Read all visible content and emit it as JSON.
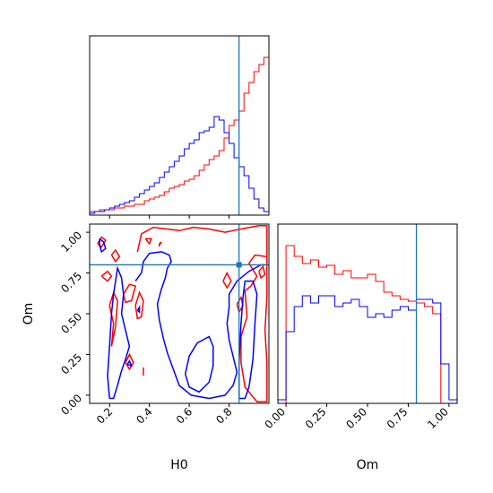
{
  "chart_data": [
    {
      "type": "area",
      "panel": "H0 marginal",
      "xlim": [
        0.1,
        1.0
      ],
      "x_bin_edges": [
        0.1,
        0.125,
        0.15,
        0.175,
        0.2,
        0.225,
        0.25,
        0.275,
        0.3,
        0.325,
        0.35,
        0.375,
        0.4,
        0.425,
        0.45,
        0.475,
        0.5,
        0.525,
        0.55,
        0.575,
        0.6,
        0.625,
        0.65,
        0.675,
        0.7,
        0.725,
        0.75,
        0.775,
        0.8,
        0.825,
        0.85,
        0.875,
        0.9,
        0.925,
        0.95,
        0.975,
        1.0
      ],
      "series": [
        {
          "color": "#ff0000",
          "values": [
            0.02,
            0.02,
            0.03,
            0.03,
            0.03,
            0.04,
            0.04,
            0.05,
            0.05,
            0.06,
            0.06,
            0.08,
            0.09,
            0.1,
            0.11,
            0.13,
            0.15,
            0.16,
            0.17,
            0.19,
            0.2,
            0.22,
            0.25,
            0.28,
            0.31,
            0.33,
            0.36,
            0.43,
            0.5,
            0.53,
            0.58,
            0.68,
            0.74,
            0.8,
            0.84,
            0.88
          ]
        },
        {
          "color": "#0000ff",
          "values": [
            0.01,
            0.02,
            0.02,
            0.03,
            0.04,
            0.05,
            0.06,
            0.07,
            0.08,
            0.1,
            0.12,
            0.14,
            0.16,
            0.18,
            0.21,
            0.24,
            0.27,
            0.3,
            0.33,
            0.37,
            0.4,
            0.42,
            0.46,
            0.47,
            0.49,
            0.55,
            0.53,
            0.46,
            0.4,
            0.32,
            0.27,
            0.22,
            0.15,
            0.09,
            0.04,
            0.02
          ]
        }
      ],
      "truth": 0.85
    },
    {
      "type": "area",
      "panel": "Om marginal",
      "xlim": [
        -0.05,
        1.05
      ],
      "xticks": [
        "0.00",
        "0.25",
        "0.50",
        "0.75",
        "1.00"
      ],
      "xtick_values": [
        0,
        0.25,
        0.5,
        0.75,
        1.0
      ],
      "xlabel": "Om",
      "x_bin_edges": [
        -0.05,
        0.0,
        0.05,
        0.1,
        0.15,
        0.2,
        0.25,
        0.3,
        0.35,
        0.4,
        0.45,
        0.5,
        0.55,
        0.6,
        0.65,
        0.7,
        0.75,
        0.8,
        0.85,
        0.9,
        0.95,
        1.0,
        1.05
      ],
      "series": [
        {
          "color": "#ff0000",
          "values": [
            0.0,
            0.88,
            0.82,
            0.78,
            0.8,
            0.76,
            0.77,
            0.72,
            0.74,
            0.7,
            0.7,
            0.72,
            0.68,
            0.62,
            0.6,
            0.58,
            0.57,
            0.56,
            0.54,
            0.5,
            0.0,
            0.0
          ]
        },
        {
          "color": "#0000ff",
          "values": [
            0.02,
            0.4,
            0.54,
            0.6,
            0.56,
            0.6,
            0.6,
            0.54,
            0.56,
            0.58,
            0.54,
            0.48,
            0.5,
            0.48,
            0.52,
            0.54,
            0.52,
            0.58,
            0.58,
            0.56,
            0.22,
            0.02
          ]
        }
      ],
      "truth": 0.8
    },
    {
      "type": "scatter",
      "panel": "H0 vs Om contours",
      "xlim": [
        0.1,
        1.0
      ],
      "ylim": [
        -0.05,
        1.05
      ],
      "xticks": [
        "0.2",
        "0.4",
        "0.6",
        "0.8"
      ],
      "xtick_values": [
        0.2,
        0.4,
        0.6,
        0.8
      ],
      "yticks": [
        "0.00",
        "0.25",
        "0.50",
        "0.75",
        "1.00"
      ],
      "ytick_values": [
        0,
        0.25,
        0.5,
        0.75,
        1.0
      ],
      "xlabel": "H0",
      "ylabel": "Om",
      "series": [
        {
          "color": "#ff0000",
          "contours": [
            [
              [
                0.14,
                0.93
              ],
              [
                0.16,
                0.97
              ],
              [
                0.18,
                0.95
              ],
              [
                0.16,
                0.91
              ],
              [
                0.14,
                0.93
              ]
            ],
            [
              [
                0.16,
                0.73
              ],
              [
                0.19,
                0.76
              ],
              [
                0.21,
                0.73
              ],
              [
                0.19,
                0.7
              ],
              [
                0.16,
                0.73
              ]
            ],
            [
              [
                0.21,
                0.86
              ],
              [
                0.23,
                0.89
              ],
              [
                0.25,
                0.85
              ],
              [
                0.23,
                0.82
              ],
              [
                0.21,
                0.86
              ]
            ],
            [
              [
                0.2,
                0.55
              ],
              [
                0.22,
                0.63
              ],
              [
                0.24,
                0.58
              ],
              [
                0.23,
                0.42
              ],
              [
                0.21,
                0.3
              ],
              [
                0.22,
                0.44
              ],
              [
                0.2,
                0.55
              ]
            ],
            [
              [
                0.27,
                0.62
              ],
              [
                0.3,
                0.68
              ],
              [
                0.33,
                0.67
              ],
              [
                0.31,
                0.58
              ],
              [
                0.28,
                0.57
              ],
              [
                0.27,
                0.62
              ]
            ],
            [
              [
                0.28,
                0.2
              ],
              [
                0.3,
                0.25
              ],
              [
                0.32,
                0.2
              ],
              [
                0.3,
                0.16
              ],
              [
                0.28,
                0.2
              ]
            ],
            [
              [
                0.33,
                0.55
              ],
              [
                0.35,
                0.63
              ],
              [
                0.37,
                0.58
              ],
              [
                0.36,
                0.48
              ],
              [
                0.34,
                0.47
              ],
              [
                0.33,
                0.55
              ]
            ],
            [
              [
                0.34,
                0.88
              ],
              [
                0.36,
                0.99
              ],
              [
                0.42,
                1.03
              ],
              [
                0.49,
                1.02
              ],
              [
                0.55,
                1.01
              ],
              [
                0.62,
                1.03
              ],
              [
                0.7,
                1.02
              ],
              [
                0.78,
                1.0
              ],
              [
                0.86,
                1.02
              ],
              [
                0.95,
                1.04
              ],
              [
                0.99,
                1.04
              ],
              [
                0.99,
                0.85
              ],
              [
                0.93,
                0.86
              ],
              [
                0.9,
                0.81
              ],
              [
                0.94,
                0.73
              ],
              [
                0.91,
                0.67
              ],
              [
                0.88,
                0.64
              ],
              [
                0.89,
                0.48
              ],
              [
                0.86,
                0.36
              ],
              [
                0.86,
                0.2
              ],
              [
                0.88,
                0.05
              ],
              [
                0.94,
                -0.04
              ],
              [
                0.99,
                -0.04
              ],
              [
                0.99,
                0.2
              ],
              [
                0.98,
                0.4
              ],
              [
                0.99,
                0.6
              ],
              [
                0.99,
                0.85
              ]
            ],
            [
              [
                0.38,
                0.96
              ],
              [
                0.41,
                0.96
              ],
              [
                0.4,
                0.93
              ],
              [
                0.38,
                0.96
              ]
            ],
            [
              [
                0.37,
                0.17
              ],
              [
                0.37,
                0.12
              ]
            ],
            [
              [
                0.45,
                0.93
              ],
              [
                0.46,
                0.94
              ],
              [
                0.45,
                0.92
              ],
              [
                0.45,
                0.93
              ]
            ],
            [
              [
                0.77,
                0.7
              ],
              [
                0.79,
                0.75
              ],
              [
                0.81,
                0.7
              ],
              [
                0.79,
                0.66
              ],
              [
                0.77,
                0.7
              ]
            ],
            [
              [
                0.84,
                0.56
              ],
              [
                0.86,
                0.6
              ],
              [
                0.87,
                0.55
              ],
              [
                0.85,
                0.51
              ],
              [
                0.84,
                0.56
              ]
            ],
            [
              [
                0.95,
                0.76
              ],
              [
                0.97,
                0.79
              ],
              [
                0.98,
                0.74
              ],
              [
                0.96,
                0.72
              ],
              [
                0.95,
                0.76
              ]
            ]
          ]
        },
        {
          "color": "#0000ff",
          "contours": [
            [
              [
                0.15,
                0.96
              ],
              [
                0.17,
                0.94
              ],
              [
                0.18,
                0.9
              ],
              [
                0.16,
                0.88
              ],
              [
                0.15,
                0.92
              ],
              [
                0.15,
                0.96
              ]
            ],
            [
              [
                0.2,
                -0.02
              ],
              [
                0.19,
                0.12
              ],
              [
                0.2,
                0.3
              ],
              [
                0.21,
                0.5
              ],
              [
                0.22,
                0.62
              ],
              [
                0.23,
                0.7
              ],
              [
                0.24,
                0.78
              ],
              [
                0.26,
                0.72
              ],
              [
                0.27,
                0.62
              ],
              [
                0.26,
                0.5
              ],
              [
                0.28,
                0.4
              ],
              [
                0.3,
                0.3
              ],
              [
                0.28,
                0.22
              ],
              [
                0.26,
                0.15
              ],
              [
                0.24,
                0.06
              ],
              [
                0.22,
                -0.02
              ],
              [
                0.2,
                -0.02
              ]
            ],
            [
              [
                0.29,
                0.19
              ],
              [
                0.3,
                0.21
              ],
              [
                0.31,
                0.18
              ],
              [
                0.29,
                0.19
              ]
            ],
            [
              [
                0.34,
                0.52
              ],
              [
                0.35,
                0.54
              ],
              [
                0.35,
                0.51
              ],
              [
                0.34,
                0.52
              ]
            ],
            [
              [
                0.33,
                0.7
              ],
              [
                0.36,
                0.75
              ],
              [
                0.37,
                0.82
              ],
              [
                0.4,
                0.87
              ],
              [
                0.46,
                0.88
              ],
              [
                0.5,
                0.86
              ],
              [
                0.51,
                0.82
              ],
              [
                0.49,
                0.78
              ],
              [
                0.48,
                0.72
              ],
              [
                0.46,
                0.65
              ],
              [
                0.44,
                0.56
              ],
              [
                0.45,
                0.46
              ],
              [
                0.47,
                0.35
              ],
              [
                0.49,
                0.26
              ],
              [
                0.52,
                0.16
              ],
              [
                0.55,
                0.06
              ],
              [
                0.61,
                0.0
              ],
              [
                0.7,
                -0.02
              ],
              [
                0.78,
                0.0
              ],
              [
                0.82,
                0.06
              ],
              [
                0.84,
                0.14
              ],
              [
                0.82,
                0.24
              ],
              [
                0.8,
                0.34
              ],
              [
                0.79,
                0.44
              ],
              [
                0.8,
                0.54
              ],
              [
                0.8,
                0.62
              ],
              [
                0.84,
                0.7
              ],
              [
                0.9,
                0.76
              ],
              [
                0.96,
                0.8
              ],
              [
                0.99,
                0.8
              ]
            ],
            [
              [
                0.58,
                0.13
              ],
              [
                0.6,
                0.24
              ],
              [
                0.64,
                0.32
              ],
              [
                0.7,
                0.36
              ],
              [
                0.72,
                0.3
              ],
              [
                0.72,
                0.18
              ],
              [
                0.7,
                0.08
              ],
              [
                0.65,
                0.02
              ],
              [
                0.6,
                0.05
              ],
              [
                0.58,
                0.13
              ]
            ],
            [
              [
                0.85,
                -0.02
              ],
              [
                0.85,
                0.2
              ],
              [
                0.86,
                0.44
              ],
              [
                0.87,
                0.6
              ],
              [
                0.88,
                0.7
              ],
              [
                0.92,
                0.7
              ],
              [
                0.94,
                0.62
              ],
              [
                0.93,
                0.44
              ],
              [
                0.92,
                0.22
              ],
              [
                0.9,
                0.05
              ],
              [
                0.88,
                -0.02
              ],
              [
                0.85,
                -0.02
              ]
            ]
          ]
        }
      ],
      "truth": [
        0.85,
        0.8
      ]
    }
  ]
}
